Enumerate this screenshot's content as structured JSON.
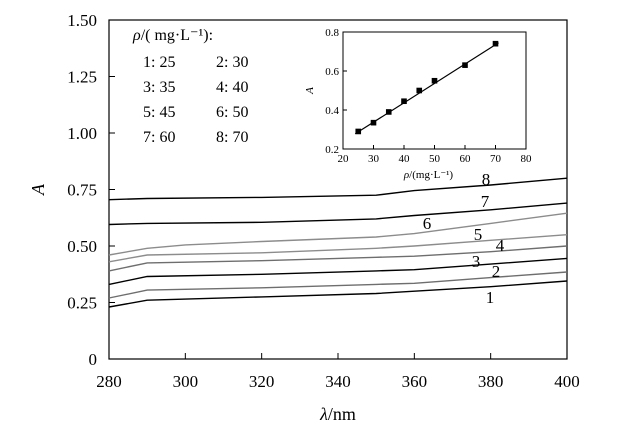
{
  "chart_data": [
    {
      "type": "line",
      "xlabel": "λ/nm",
      "ylabel": "A",
      "xlim": [
        280,
        400
      ],
      "ylim": [
        0,
        1.5
      ],
      "x_ticks": [
        "280",
        "300",
        "320",
        "340",
        "360",
        "380",
        "400"
      ],
      "y_ticks": [
        "0",
        "0.25",
        "0.50",
        "0.75",
        "1.00",
        "1.25",
        "1.50"
      ],
      "legend": {
        "title": "ρ/( mg·L⁻¹):",
        "entries": [
          "1: 25",
          "2: 30",
          "3: 35",
          "4: 40",
          "5: 45",
          "6: 50",
          "7: 60",
          "8: 70"
        ]
      },
      "series": [
        {
          "name": "1",
          "color": "#000000",
          "x": [
            280,
            290,
            320,
            350,
            360,
            380,
            400
          ],
          "y": [
            0.23,
            0.26,
            0.275,
            0.29,
            0.3,
            0.32,
            0.345
          ]
        },
        {
          "name": "2",
          "color": "#6e6e6e",
          "x": [
            280,
            290,
            320,
            350,
            360,
            380,
            400
          ],
          "y": [
            0.27,
            0.305,
            0.315,
            0.33,
            0.335,
            0.36,
            0.385
          ]
        },
        {
          "name": "3",
          "color": "#000000",
          "x": [
            280,
            290,
            320,
            350,
            360,
            380,
            400
          ],
          "y": [
            0.33,
            0.365,
            0.375,
            0.39,
            0.395,
            0.42,
            0.445
          ]
        },
        {
          "name": "4",
          "color": "#6e6e6e",
          "x": [
            280,
            290,
            320,
            350,
            360,
            380,
            400
          ],
          "y": [
            0.39,
            0.425,
            0.435,
            0.45,
            0.455,
            0.475,
            0.5
          ]
        },
        {
          "name": "5",
          "color": "#8c8c8c",
          "x": [
            280,
            290,
            320,
            350,
            360,
            380,
            400
          ],
          "y": [
            0.43,
            0.46,
            0.47,
            0.49,
            0.5,
            0.525,
            0.55
          ]
        },
        {
          "name": "6",
          "color": "#8c8c8c",
          "x": [
            280,
            290,
            300,
            320,
            350,
            360,
            380,
            400
          ],
          "y": [
            0.46,
            0.49,
            0.505,
            0.52,
            0.54,
            0.555,
            0.6,
            0.645
          ]
        },
        {
          "name": "7",
          "color": "#000000",
          "x": [
            280,
            290,
            320,
            350,
            360,
            380,
            400
          ],
          "y": [
            0.595,
            0.6,
            0.605,
            0.62,
            0.635,
            0.66,
            0.69
          ]
        },
        {
          "name": "8",
          "color": "#000000",
          "x": [
            280,
            290,
            320,
            350,
            360,
            380,
            400
          ],
          "y": [
            0.705,
            0.71,
            0.715,
            0.725,
            0.745,
            0.77,
            0.8
          ]
        }
      ],
      "curve_labels": [
        "1",
        "2",
        "3",
        "4",
        "5",
        "6",
        "7",
        "8"
      ]
    },
    {
      "type": "scatter",
      "xlabel": "ρ/(mg·L⁻¹)",
      "ylabel": "A",
      "xlim": [
        20,
        80
      ],
      "ylim": [
        0.2,
        0.8
      ],
      "x_ticks": [
        "20",
        "30",
        "40",
        "50",
        "60",
        "70",
        "80"
      ],
      "y_ticks": [
        "0.2",
        "0.4",
        "0.6",
        "0.8"
      ],
      "points": {
        "x": [
          25,
          30,
          35,
          40,
          45,
          50,
          60,
          70
        ],
        "y": [
          0.29,
          0.335,
          0.39,
          0.445,
          0.5,
          0.55,
          0.63,
          0.74
        ]
      },
      "fit_line": {
        "x": [
          24,
          71
        ],
        "y": [
          0.278,
          0.745
        ]
      }
    }
  ]
}
